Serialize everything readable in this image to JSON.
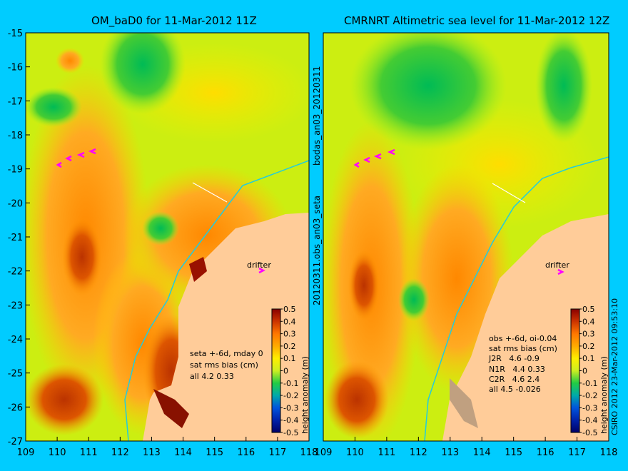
{
  "chart_data": [
    {
      "type": "heatmap",
      "title": "OM_baD0 for 11-Mar-2012 11Z",
      "x_ticks": [
        "109",
        "110",
        "111",
        "112",
        "113",
        "114",
        "115",
        "116",
        "117",
        "118"
      ],
      "y_ticks": [
        "-15",
        "-16",
        "-17",
        "-18",
        "-19",
        "-20",
        "-21",
        "-22",
        "-23",
        "-24",
        "-25",
        "-26",
        "-27"
      ],
      "xlim": [
        109,
        118
      ],
      "ylim": [
        -27,
        -15
      ],
      "colorbar_label": "height anomaly (m)",
      "colorbar_ticks": [
        "0.5",
        "0.4",
        "0.3",
        "0.2",
        "0.1",
        "0",
        "-0.1",
        "-0.2",
        "-0.3",
        "-0.4",
        "-0.5"
      ],
      "colorbar_range": [
        -0.5,
        0.5
      ],
      "annotation_lines": [
        "seta +-6d, mday 0",
        "sat rms bias (cm)",
        "all 4.2 0.33"
      ],
      "drifter_label": "drifter",
      "side_label": "bodas_an03_20120311"
    },
    {
      "type": "heatmap",
      "title": "CMRNRT Altimetric sea level  for 11-Mar-2012 12Z",
      "x_ticks": [
        "109",
        "110",
        "111",
        "112",
        "113",
        "114",
        "115",
        "116",
        "117",
        "118"
      ],
      "y_ticks": [],
      "xlim": [
        109,
        118
      ],
      "ylim": [
        -27,
        -15
      ],
      "colorbar_label": "height anomaly (m)",
      "colorbar_ticks": [
        "0.5",
        "0.4",
        "0.3",
        "0.2",
        "0.1",
        "0",
        "-0.1",
        "-0.2",
        "-0.3",
        "-0.4",
        "-0.5"
      ],
      "colorbar_range": [
        -0.5,
        0.5
      ],
      "annotation_lines": [
        "obs +-6d, oi-0.04",
        "sat rms bias (cm)",
        "J2R   4.6 -0.9",
        "N1R   4.4 0.33",
        "C2R   4.6 2.4",
        "all 4.5 -0.026"
      ],
      "drifter_label": "drifter",
      "side_label": "20120311.obs_an03_seta"
    }
  ],
  "credit": "CSIRO 2012   23-Mar-2012 09:53:10",
  "colors": {
    "background": "#00ccff",
    "land": "#ffcc99"
  }
}
